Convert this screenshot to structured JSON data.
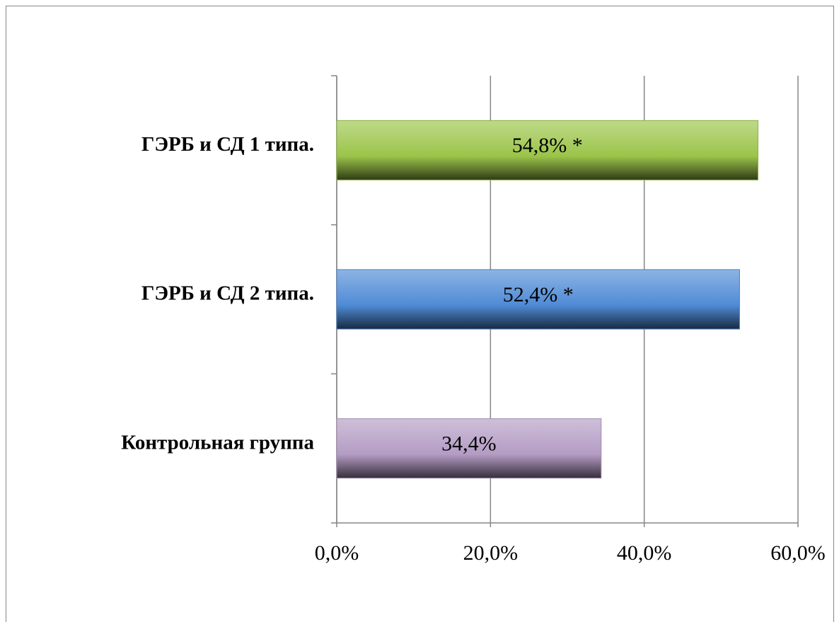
{
  "chart_data": {
    "type": "barh",
    "categories": [
      "ГЭРБ и СД 1 типа.",
      "ГЭРБ и СД 2 типа.",
      "Контрольная группа"
    ],
    "values": [
      54.8,
      52.4,
      34.4
    ],
    "value_labels": [
      "54,8% *",
      "52,4% *",
      "34,4%"
    ],
    "colors": [
      "#9bc449",
      "#4f8bd6",
      "#b49cc4"
    ],
    "xlim": [
      0,
      60
    ],
    "xticks": [
      {
        "value": 0,
        "label": "0,0%"
      },
      {
        "value": 20,
        "label": "20,0%"
      },
      {
        "value": 40,
        "label": "40,0%"
      },
      {
        "value": 60,
        "label": "60,0%"
      }
    ],
    "grid": true
  }
}
